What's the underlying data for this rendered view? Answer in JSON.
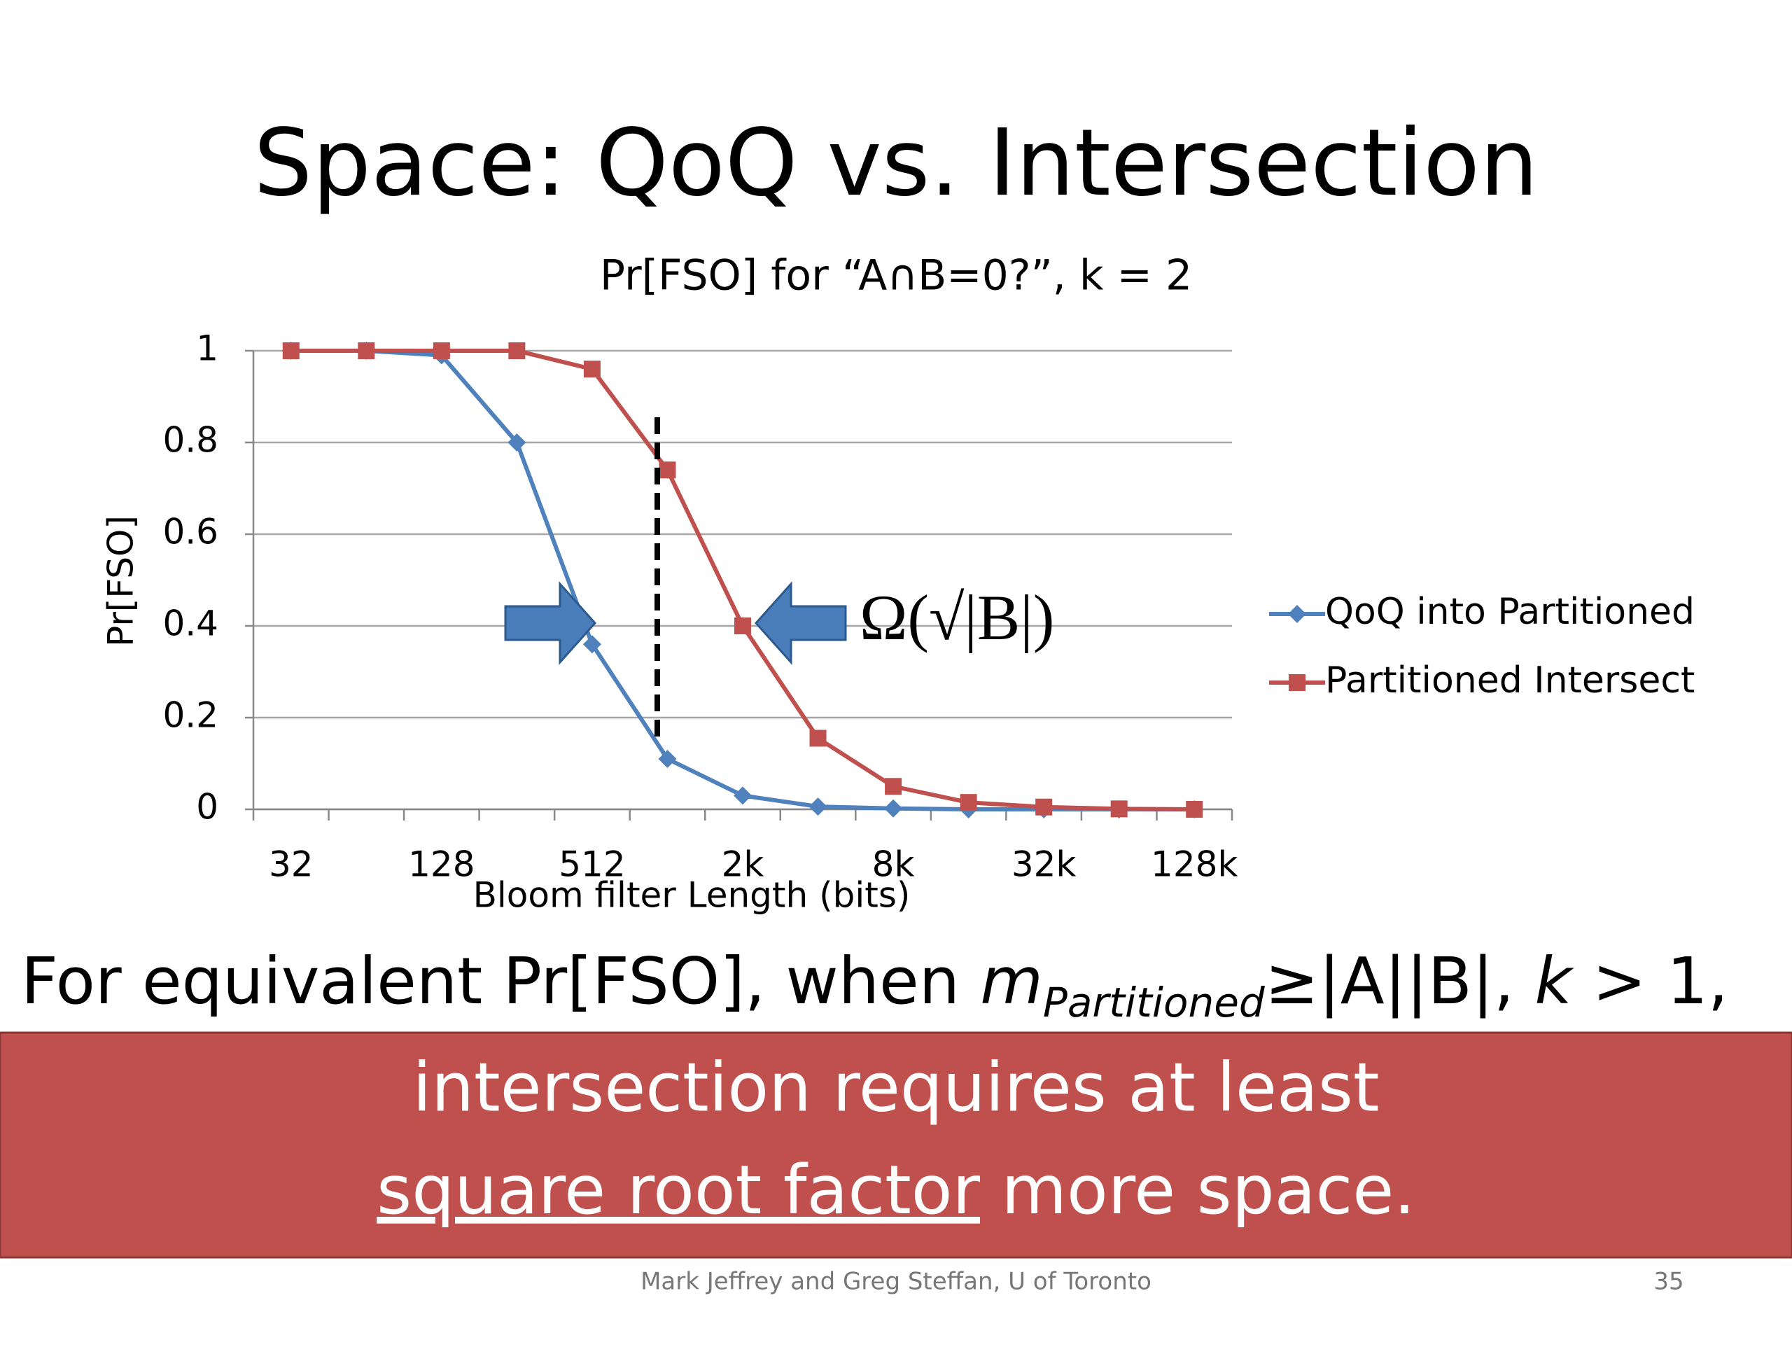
{
  "slide": {
    "title": "Space: QoQ vs. Intersection",
    "statement": {
      "lead": "For equivalent Pr[FSO], when ",
      "m": "m",
      "subscript": "Partitioned",
      "condition": "≥|A||B|, ",
      "k": "k",
      "tail": " > 1,"
    },
    "highlight": {
      "line1": "intersection requires at least",
      "underlined": "square root factor",
      "rest": " more space."
    },
    "footer": "Mark Jeffrey and Greg Steffan, U of Toronto",
    "page": "35"
  },
  "chart_data": {
    "type": "line",
    "title": "Pr[FSO] for “A∩B=0?”, k = 2",
    "x_label": "Bloom filter Length (bits)",
    "y_label": "Pr[FSO]",
    "annotation": "Ω(√|B|)",
    "categories": [
      "32",
      null,
      "128",
      null,
      "512",
      null,
      "2k",
      null,
      "8k",
      null,
      "32k",
      null,
      "128k"
    ],
    "series": [
      {
        "name": "QoQ into Partitioned",
        "color": "#4f81bd",
        "marker": "diamond",
        "values": [
          1,
          1,
          0.99,
          0.8,
          0.36,
          0.11,
          0.03,
          0.006,
          0.002,
          0,
          0,
          0,
          0
        ]
      },
      {
        "name": "Partitioned Intersect",
        "color": "#c0504d",
        "marker": "square",
        "values": [
          1,
          1,
          1,
          1,
          0.96,
          0.74,
          0.4,
          0.155,
          0.05,
          0.015,
          0.005,
          0.001,
          0
        ]
      }
    ],
    "ylim": [
      0,
      1
    ],
    "yticks": [
      0,
      0.2,
      0.4,
      0.6,
      0.8,
      1
    ],
    "grid": true,
    "legend": "right"
  }
}
